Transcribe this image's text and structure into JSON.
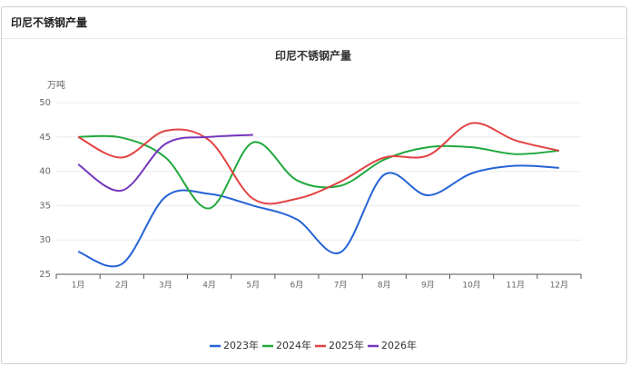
{
  "header": {
    "title": "印尼不锈钢产量"
  },
  "chart_data": {
    "type": "line",
    "title": "印尼不锈钢产量",
    "y_label": "万吨",
    "categories": [
      "1月",
      "2月",
      "3月",
      "4月",
      "5月",
      "6月",
      "7月",
      "8月",
      "9月",
      "10月",
      "11月",
      "12月"
    ],
    "series": [
      {
        "name": "2023年",
        "color": "#2563d6",
        "values": [
          28.3,
          26.5,
          36.3,
          36.7,
          35.0,
          33.0,
          28.2,
          39.5,
          36.5,
          39.7,
          40.8,
          40.5
        ]
      },
      {
        "name": "2024年",
        "color": "#20a83c",
        "values": [
          45.0,
          44.9,
          42.0,
          34.6,
          44.2,
          38.7,
          37.9,
          41.7,
          43.5,
          43.5,
          42.5,
          43.0
        ]
      },
      {
        "name": "2025年",
        "color": "#e24343",
        "values": [
          45.0,
          42.0,
          45.9,
          44.5,
          36.0,
          36.0,
          38.5,
          42.0,
          42.3,
          47.0,
          44.5,
          43.0
        ]
      },
      {
        "name": "2026年",
        "color": "#7436bd",
        "values": [
          41.0,
          37.2,
          44.0,
          45.0,
          45.3,
          null,
          null,
          null,
          null,
          null,
          null,
          null
        ]
      }
    ],
    "ylim": [
      25,
      50
    ],
    "yticks": [
      25,
      30,
      35,
      40,
      45,
      50
    ],
    "grid": true,
    "smooth": true,
    "legend": "bottom"
  }
}
